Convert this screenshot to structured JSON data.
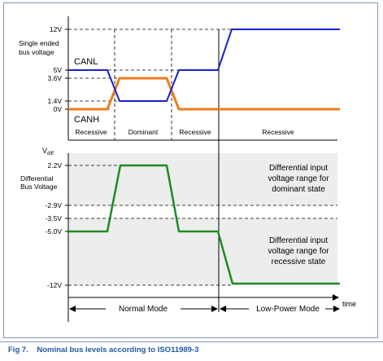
{
  "top_panel": {
    "axis_title": [
      "Single ended",
      "bus voltage"
    ],
    "y_ticks": [
      "12V",
      "5V",
      "3.6V",
      "1.4V",
      "0V"
    ],
    "signals": {
      "canl_label": "CANL",
      "canh_label": "CANH"
    },
    "states": [
      "Recessive",
      "Dominant",
      "Recessive",
      "Recessive"
    ]
  },
  "bottom_panel": {
    "axis_title_main": "V",
    "axis_title_sub": "diff",
    "side_label": [
      "Differential",
      "Bus Voltage"
    ],
    "y_ticks": [
      "2.2V",
      "-2.9V",
      "-3.5V",
      "-5.0V",
      "-12V"
    ],
    "dominant_note": [
      "Differential input",
      "voltage range for",
      "dominant state"
    ],
    "recessive_note": [
      "Differential input",
      "voltage range for",
      "recessive state"
    ],
    "modes": [
      "Normal Mode",
      "Low-Power Mode"
    ],
    "x_axis_label": "time"
  },
  "caption": "Fig 7.    Nominal bus levels according to ISO11989-3",
  "colors": {
    "canl": "#1a22c8",
    "canh": "#ee7a1d",
    "diff": "#1e8a22",
    "band": "#ededed",
    "frame": "#7f99b5",
    "caption": "#1f5aa6"
  },
  "chart_data": [
    {
      "type": "line",
      "title": "",
      "ylabel": "Single ended bus voltage",
      "y_unit": "V",
      "ylim": [
        0,
        12
      ],
      "phases": [
        "Recessive",
        "Dominant",
        "Recessive",
        "Recessive"
      ],
      "x": [
        0,
        1,
        2,
        3,
        4,
        5,
        6,
        7,
        8,
        9,
        10
      ],
      "series": [
        {
          "name": "CANL",
          "values": [
            5,
            5,
            5,
            1.4,
            1.4,
            5,
            5,
            5,
            12,
            12,
            12
          ]
        },
        {
          "name": "CANH",
          "values": [
            0,
            0,
            0,
            3.6,
            3.6,
            0,
            0,
            0,
            0,
            0,
            0
          ]
        }
      ]
    },
    {
      "type": "line",
      "title": "",
      "ylabel": "Differential Bus Voltage",
      "y_unit": "V",
      "ylim": [
        -12,
        2.2
      ],
      "modes": [
        "Normal Mode",
        "Low-Power Mode"
      ],
      "x": [
        0,
        1,
        2,
        3,
        4,
        5,
        6,
        7,
        8,
        9,
        10
      ],
      "series": [
        {
          "values": [
            -5.0,
            -5.0,
            -5.0,
            2.2,
            2.2,
            -5.0,
            -5.0,
            -5.0,
            -12,
            -12,
            -12
          ]
        }
      ],
      "bands": [
        {
          "from": -2.9,
          "to": 2.2,
          "label": "Differential input voltage range for dominant state"
        },
        {
          "from": -12,
          "to": -3.5,
          "label": "Differential input voltage range for recessive state"
        }
      ]
    }
  ]
}
